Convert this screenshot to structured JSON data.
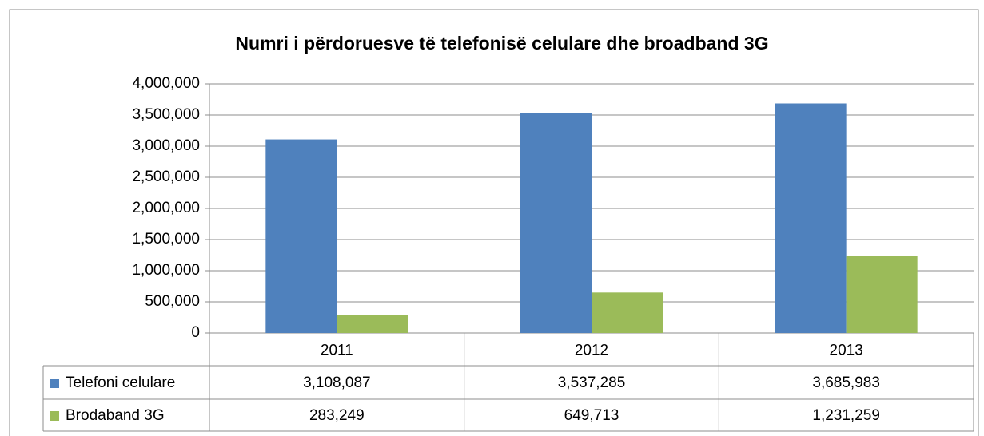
{
  "chart_data": {
    "type": "bar",
    "title": "Numri i përdoruesve të telefonisë celulare dhe broadband  3G",
    "categories": [
      "2011",
      "2012",
      "2013"
    ],
    "series": [
      {
        "name": "Telefoni celulare",
        "color": "#4f81bd",
        "values": [
          3108087,
          3537285,
          3685983
        ],
        "value_labels": [
          "3,108,087",
          "3,537,285",
          "3,685,983"
        ]
      },
      {
        "name": "Brodaband 3G",
        "color": "#9bbb59",
        "values": [
          283249,
          649713,
          1231259
        ],
        "value_labels": [
          "283,249",
          "649,713",
          "1,231,259"
        ]
      }
    ],
    "ylim": [
      0,
      4000000
    ],
    "yticks": [
      0,
      {
        "value": 500000,
        "label": "500,000"
      },
      {
        "value": 1000000,
        "label": "1,000,000"
      },
      {
        "value": 1500000,
        "label": "1,500,000"
      },
      {
        "value": 2000000,
        "label": "2,000,000"
      },
      {
        "value": 2500000,
        "label": "2,500,000"
      },
      {
        "value": 3000000,
        "label": "3,000,000"
      },
      {
        "value": 3500000,
        "label": "3,500,000"
      },
      {
        "value": 4000000,
        "label": "4,000,000"
      }
    ],
    "grid": true
  }
}
